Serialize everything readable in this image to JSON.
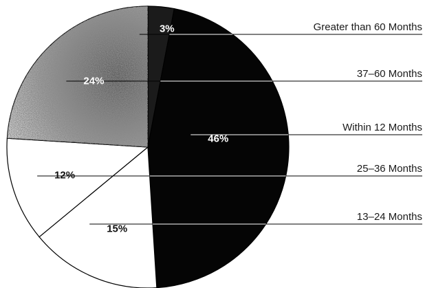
{
  "chart_data": {
    "type": "pie",
    "slices": [
      {
        "label": "Greater than 60 Months",
        "value": 3,
        "value_label": "3%",
        "color": "#1b1b1b",
        "label_color": "#ffffff",
        "shade": "dark"
      },
      {
        "label": "Within 12 Months",
        "value": 46,
        "value_label": "46%",
        "color": "#050505",
        "label_color": "#ffffff",
        "shade": "black"
      },
      {
        "label": "13–24 Months",
        "value": 15,
        "value_label": "15%",
        "color": "#ffffff",
        "label_color": "#111111",
        "shade": "white"
      },
      {
        "label": "25–36 Months",
        "value": 12,
        "value_label": "12%",
        "color": "#ffffff",
        "label_color": "#111111",
        "shade": "white"
      },
      {
        "label": "37–60 Months",
        "value": 24,
        "value_label": "24%",
        "color": "#9a9a9a",
        "label_color": "#ffffff",
        "shade": "stipple"
      }
    ],
    "legend_order": [
      "Greater than 60 Months",
      "37–60 Months",
      "Within 12 Months",
      "25–36 Months",
      "13–24 Months"
    ],
    "legend_placement": "right",
    "start_angle_deg": 0,
    "direction": "clockwise"
  }
}
